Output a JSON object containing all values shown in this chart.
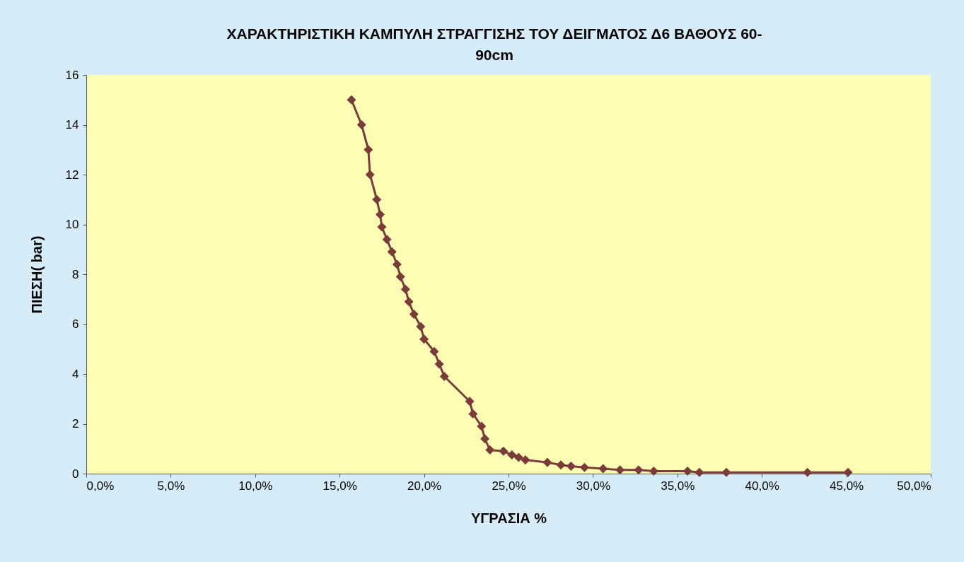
{
  "chart_data": {
    "type": "line",
    "title": "ΧΑΡΑΚΤΗΡΙΣΤΙΚΗ ΚΑΜΠΥΛΗ ΣΤΡΑΓΓΙΣΗΣ ΤΟΥ ΔΕΙΓΜΑΤΟΣ Δ6  ΒΑΘΟΥΣ 60-90cm",
    "xlabel": "ΥΓΡΑΣΙΑ  %",
    "ylabel": "ΠΙΕΣΗ( bar)",
    "x": [
      15.7,
      16.3,
      16.7,
      16.8,
      17.2,
      17.4,
      17.5,
      17.8,
      18.1,
      18.4,
      18.6,
      18.9,
      19.1,
      19.4,
      19.8,
      20.0,
      20.6,
      20.9,
      21.2,
      22.7,
      22.9,
      23.4,
      23.6,
      23.9,
      24.7,
      25.2,
      25.6,
      26.0,
      27.3,
      28.1,
      28.7,
      29.5,
      30.6,
      31.6,
      32.7,
      33.6,
      35.6,
      36.3,
      37.9,
      42.7,
      45.1
    ],
    "series": [
      {
        "color": "#7b3b3b",
        "values": [
          15,
          14,
          13,
          12,
          11,
          10.4,
          9.9,
          9.4,
          8.9,
          8.4,
          7.9,
          7.4,
          6.9,
          6.4,
          5.9,
          5.4,
          4.9,
          4.4,
          3.9,
          2.9,
          2.4,
          1.9,
          1.4,
          0.95,
          0.9,
          0.75,
          0.65,
          0.55,
          0.45,
          0.35,
          0.3,
          0.25,
          0.2,
          0.15,
          0.15,
          0.1,
          0.1,
          0.05,
          0.05,
          0.05,
          0.05
        ]
      }
    ],
    "xlim": [
      0,
      50
    ],
    "xticks": [
      {
        "value": 0,
        "label": "0,0%"
      },
      {
        "value": 5,
        "label": "5,0%"
      },
      {
        "value": 10,
        "label": "10,0%"
      },
      {
        "value": 15,
        "label": "15,0%"
      },
      {
        "value": 20,
        "label": "20,0%"
      },
      {
        "value": 25,
        "label": "25,0%"
      },
      {
        "value": 30,
        "label": "30,0%"
      },
      {
        "value": 35,
        "label": "35,0%"
      },
      {
        "value": 40,
        "label": "40,0%"
      },
      {
        "value": 45,
        "label": "45,0%"
      },
      {
        "value": 50,
        "label": "50,0%"
      }
    ],
    "ylim": [
      0,
      16
    ],
    "yticks": [
      0,
      2,
      4,
      6,
      8,
      10,
      12,
      14,
      16
    ],
    "marker": "diamond",
    "line_style": "solid"
  }
}
